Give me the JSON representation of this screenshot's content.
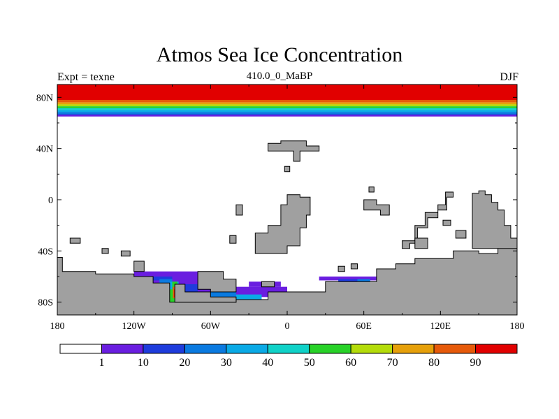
{
  "chart_data": {
    "type": "heatmap",
    "title": "Atmos Sea Ice Concentration",
    "subtitle": "410.0_0_MaBP",
    "left_label": "Expt = texne",
    "right_label": "DJF",
    "x_ticks": [
      "180",
      "120W",
      "60W",
      "0",
      "60E",
      "120E",
      "180"
    ],
    "x_tick_values": [
      -180,
      -120,
      -60,
      0,
      60,
      120,
      180
    ],
    "y_ticks": [
      "80N",
      "40N",
      "0",
      "40S",
      "80S"
    ],
    "y_tick_values": [
      80,
      40,
      0,
      -40,
      -80
    ],
    "xlim": [
      -180,
      180
    ],
    "ylim": [
      -90,
      90
    ],
    "land_color": "#a0a0a0",
    "colorbar": {
      "labels": [
        "1",
        "10",
        "20",
        "30",
        "40",
        "50",
        "60",
        "70",
        "80",
        "90"
      ],
      "colors": [
        "#ffffff",
        "#6a1ee0",
        "#1e3cdc",
        "#0a7ae0",
        "#0aaae6",
        "#10d2c8",
        "#28d228",
        "#b4dc0a",
        "#e6a00a",
        "#e65a0a",
        "#e10000"
      ]
    },
    "north_ice_bands": [
      {
        "lat_top": 90,
        "lat_bottom": 78,
        "level": 10
      },
      {
        "lat_top": 78,
        "lat_bottom": 76,
        "level": 9
      },
      {
        "lat_top": 76,
        "lat_bottom": 74.5,
        "level": 8
      },
      {
        "lat_top": 74.5,
        "lat_bottom": 73,
        "level": 7
      },
      {
        "lat_top": 73,
        "lat_bottom": 71.5,
        "level": 6
      },
      {
        "lat_top": 71.5,
        "lat_bottom": 70,
        "level": 5
      },
      {
        "lat_top": 70,
        "lat_bottom": 68.5,
        "level": 4
      },
      {
        "lat_top": 68.5,
        "lat_bottom": 67,
        "level": 3
      },
      {
        "lat_top": 67,
        "lat_bottom": 66,
        "level": 2
      },
      {
        "lat_top": 66,
        "lat_bottom": 65,
        "level": 1
      }
    ],
    "southern_ice": [
      {
        "lon": [
          -150,
          -140
        ],
        "lat": [
          -60,
          -58
        ],
        "level": 1
      },
      {
        "lon": [
          -120,
          -70
        ],
        "lat": [
          -66,
          -56
        ],
        "level": 1
      },
      {
        "lon": [
          -80,
          -60
        ],
        "lat": [
          -72,
          -62
        ],
        "level": 1
      },
      {
        "lon": [
          -60,
          0
        ],
        "lat": [
          -76,
          -68
        ],
        "level": 1
      },
      {
        "lon": [
          -30,
          -5
        ],
        "lat": [
          -68,
          -64
        ],
        "level": 1
      },
      {
        "lon": [
          -115,
          -90
        ],
        "lat": [
          -63,
          -60
        ],
        "level": 2
      },
      {
        "lon": [
          -95,
          -70
        ],
        "lat": [
          -78,
          -66
        ],
        "level": 2
      },
      {
        "lon": [
          -70,
          -40
        ],
        "lat": [
          -80,
          -72
        ],
        "level": 3
      },
      {
        "lon": [
          -40,
          -20
        ],
        "lat": [
          -78,
          -74
        ],
        "level": 4
      },
      {
        "lon": [
          -100,
          -90
        ],
        "lat": [
          -66,
          -62
        ],
        "level": 3
      },
      {
        "lon": [
          -92,
          -85
        ],
        "lat": [
          -80,
          -64
        ],
        "level": 4
      },
      {
        "lon": [
          -90,
          -86
        ],
        "lat": [
          -80,
          -64
        ],
        "level": 6
      },
      {
        "lon": [
          -89.5,
          -86.5
        ],
        "lat": [
          -77,
          -68
        ],
        "level": 9
      },
      {
        "lon": [
          -88.5,
          -87.5
        ],
        "lat": [
          -76,
          -70
        ],
        "level": 10
      },
      {
        "lon": [
          -95,
          -90
        ],
        "lat": [
          -80,
          -70
        ],
        "level": 6
      },
      {
        "lon": [
          25,
          70
        ],
        "lat": [
          -63,
          -60
        ],
        "level": 1
      },
      {
        "lon": [
          52,
          65
        ],
        "lat": [
          -68,
          -64
        ],
        "level": 1
      },
      {
        "lon": [
          55,
          65
        ],
        "lat": [
          -66,
          -62
        ],
        "level": 3
      },
      {
        "lon": [
          60,
          70
        ],
        "lat": [
          -68,
          -65
        ],
        "level": 5
      },
      {
        "lon": [
          40,
          55
        ],
        "lat": [
          -64,
          -62
        ],
        "level": 2
      }
    ],
    "land_polygons": [
      [
        [
          -180,
          -90
        ],
        [
          -180,
          -45
        ],
        [
          -176,
          -45
        ],
        [
          -176,
          -56
        ],
        [
          -150,
          -56
        ],
        [
          -150,
          -58
        ],
        [
          -120,
          -58
        ],
        [
          -120,
          -60
        ],
        [
          -105,
          -60
        ],
        [
          -105,
          -65
        ],
        [
          -92,
          -65
        ],
        [
          -92,
          -80
        ],
        [
          -40,
          -80
        ],
        [
          -40,
          -78
        ],
        [
          -15,
          -78
        ],
        [
          -15,
          -72
        ],
        [
          30,
          -72
        ],
        [
          30,
          -64
        ],
        [
          70,
          -64
        ],
        [
          70,
          -54
        ],
        [
          85,
          -54
        ],
        [
          85,
          -50
        ],
        [
          100,
          -50
        ],
        [
          100,
          -46
        ],
        [
          130,
          -46
        ],
        [
          130,
          -40
        ],
        [
          150,
          -40
        ],
        [
          150,
          -42
        ],
        [
          165,
          -42
        ],
        [
          165,
          -30
        ],
        [
          180,
          -30
        ],
        [
          180,
          -90
        ]
      ],
      [
        [
          -88,
          -80
        ],
        [
          -88,
          -66
        ],
        [
          -80,
          -66
        ],
        [
          -80,
          -72
        ],
        [
          -60,
          -72
        ],
        [
          -60,
          -76
        ],
        [
          -40,
          -76
        ],
        [
          -40,
          -80
        ]
      ],
      [
        [
          -70,
          -70
        ],
        [
          -70,
          -56
        ],
        [
          -50,
          -56
        ],
        [
          -50,
          -62
        ],
        [
          -40,
          -62
        ],
        [
          -40,
          -72
        ],
        [
          -60,
          -72
        ],
        [
          -60,
          -70
        ]
      ],
      [
        [
          -20,
          -68
        ],
        [
          -20,
          -64
        ],
        [
          -10,
          -64
        ],
        [
          -10,
          -68
        ]
      ],
      [
        [
          -25,
          -42
        ],
        [
          -25,
          -26
        ],
        [
          -15,
          -26
        ],
        [
          -15,
          -20
        ],
        [
          -5,
          -20
        ],
        [
          -5,
          -4
        ],
        [
          0,
          -4
        ],
        [
          0,
          4
        ],
        [
          10,
          4
        ],
        [
          10,
          2
        ],
        [
          18,
          2
        ],
        [
          18,
          -12
        ],
        [
          15,
          -12
        ],
        [
          15,
          -22
        ],
        [
          10,
          -22
        ],
        [
          10,
          -36
        ],
        [
          0,
          -36
        ],
        [
          0,
          -42
        ]
      ],
      [
        [
          -45,
          -34
        ],
        [
          -45,
          -28
        ],
        [
          -40,
          -28
        ],
        [
          -40,
          -34
        ]
      ],
      [
        [
          -40,
          -12
        ],
        [
          -40,
          -4
        ],
        [
          -35,
          -4
        ],
        [
          -35,
          -12
        ]
      ],
      [
        [
          -15,
          38
        ],
        [
          -15,
          44
        ],
        [
          -5,
          44
        ],
        [
          -5,
          46
        ],
        [
          15,
          46
        ],
        [
          15,
          42
        ],
        [
          25,
          42
        ],
        [
          25,
          38
        ],
        [
          10,
          38
        ],
        [
          10,
          30
        ],
        [
          5,
          30
        ],
        [
          5,
          38
        ]
      ],
      [
        [
          -2,
          22
        ],
        [
          -2,
          26
        ],
        [
          2,
          26
        ],
        [
          2,
          22
        ]
      ],
      [
        [
          60,
          -8
        ],
        [
          60,
          0
        ],
        [
          70,
          0
        ],
        [
          70,
          -4
        ],
        [
          80,
          -4
        ],
        [
          80,
          -12
        ],
        [
          73,
          -12
        ],
        [
          73,
          -8
        ]
      ],
      [
        [
          64,
          6
        ],
        [
          64,
          10
        ],
        [
          68,
          10
        ],
        [
          68,
          6
        ]
      ],
      [
        [
          -170,
          -34
        ],
        [
          -170,
          -30
        ],
        [
          -162,
          -30
        ],
        [
          -162,
          -34
        ]
      ],
      [
        [
          -145,
          -42
        ],
        [
          -145,
          -38
        ],
        [
          -140,
          -38
        ],
        [
          -140,
          -42
        ]
      ],
      [
        [
          -130,
          -44
        ],
        [
          -130,
          -40
        ],
        [
          -123,
          -40
        ],
        [
          -123,
          -44
        ]
      ],
      [
        [
          -120,
          -56
        ],
        [
          -120,
          -48
        ],
        [
          -112,
          -48
        ],
        [
          -112,
          -56
        ]
      ],
      [
        [
          40,
          -56
        ],
        [
          40,
          -52
        ],
        [
          45,
          -52
        ],
        [
          45,
          -56
        ]
      ],
      [
        [
          50,
          -54
        ],
        [
          50,
          -50
        ],
        [
          55,
          -50
        ],
        [
          55,
          -54
        ]
      ],
      [
        [
          145,
          -38
        ],
        [
          145,
          5
        ],
        [
          150,
          5
        ],
        [
          150,
          7
        ],
        [
          155,
          7
        ],
        [
          155,
          4
        ],
        [
          160,
          4
        ],
        [
          160,
          -2
        ],
        [
          165,
          -2
        ],
        [
          165,
          -8
        ],
        [
          170,
          -8
        ],
        [
          170,
          -20
        ],
        [
          175,
          -20
        ],
        [
          175,
          -30
        ],
        [
          180,
          -30
        ],
        [
          180,
          -38
        ]
      ],
      [
        [
          90,
          -38
        ],
        [
          90,
          -32
        ],
        [
          100,
          -32
        ],
        [
          100,
          -20
        ],
        [
          108,
          -20
        ],
        [
          108,
          -10
        ],
        [
          118,
          -10
        ],
        [
          118,
          -4
        ],
        [
          124,
          -4
        ],
        [
          124,
          6
        ],
        [
          130,
          6
        ],
        [
          130,
          2
        ],
        [
          125,
          2
        ],
        [
          125,
          -8
        ],
        [
          118,
          -8
        ],
        [
          118,
          -14
        ],
        [
          110,
          -14
        ],
        [
          110,
          -22
        ],
        [
          102,
          -22
        ],
        [
          102,
          -34
        ],
        [
          96,
          -34
        ],
        [
          96,
          -38
        ]
      ],
      [
        [
          122,
          -20
        ],
        [
          122,
          -16
        ],
        [
          128,
          -16
        ],
        [
          128,
          -20
        ]
      ],
      [
        [
          132,
          -30
        ],
        [
          132,
          -24
        ],
        [
          140,
          -24
        ],
        [
          140,
          -30
        ]
      ],
      [
        [
          100,
          -38
        ],
        [
          100,
          -30
        ],
        [
          110,
          -30
        ],
        [
          110,
          -38
        ]
      ]
    ]
  }
}
